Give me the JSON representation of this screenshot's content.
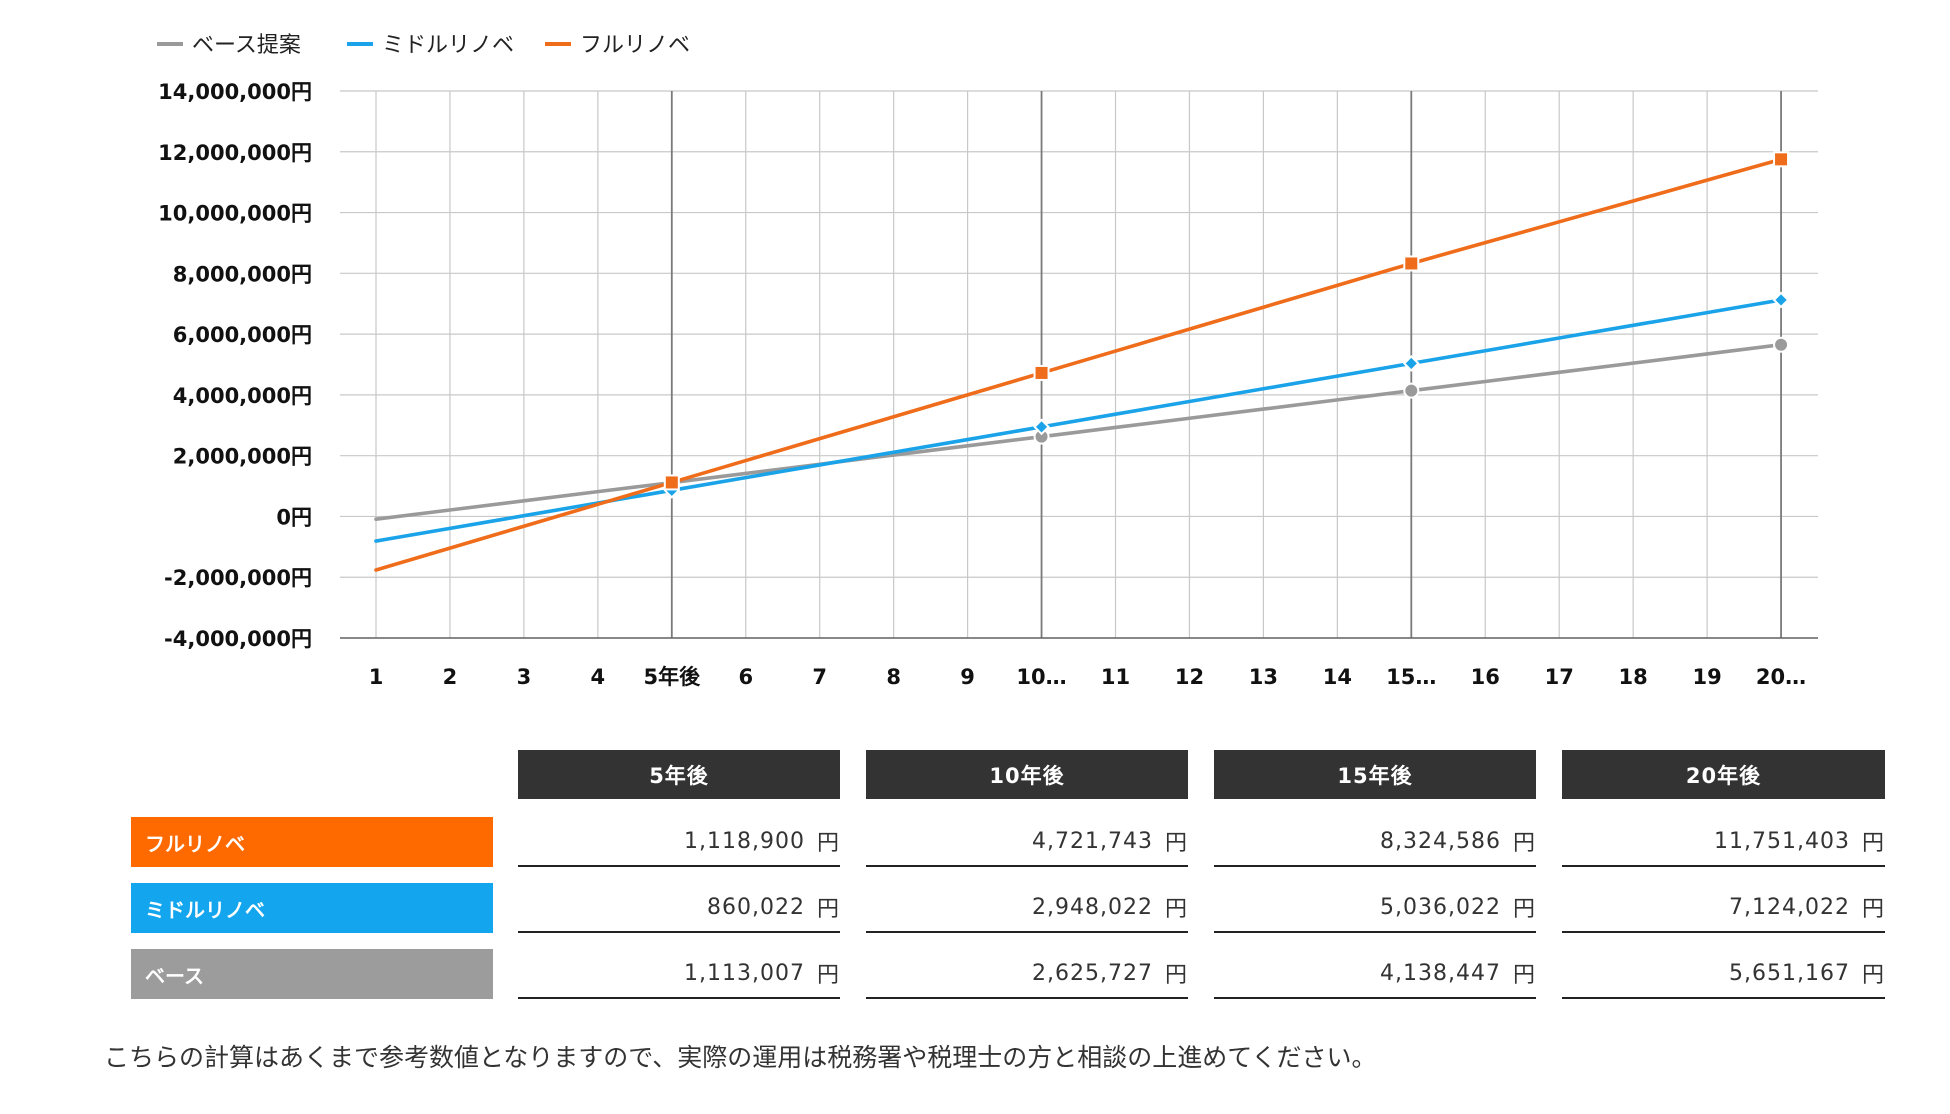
{
  "chart_data": {
    "type": "line",
    "legend": [
      {
        "name": "ベース提案",
        "color": "#9a9a9a"
      },
      {
        "name": "ミドルリノベ",
        "color": "#1aa3e8"
      },
      {
        "name": "フルリノベ",
        "color": "#ef6c1a"
      }
    ],
    "legend_position": "top-left",
    "x_labels": [
      "1",
      "2",
      "3",
      "4",
      "5年後",
      "6",
      "7",
      "8",
      "9",
      "10…",
      "11",
      "12",
      "13",
      "14",
      "15…",
      "16",
      "17",
      "18",
      "19",
      "20…"
    ],
    "y_ticks": [
      "14,000,000円",
      "12,000,000円",
      "10,000,000円",
      "8,000,000円",
      "6,000,000円",
      "4,000,000円",
      "2,000,000円",
      "0円",
      "-2,000,000円",
      "-4,000,000円"
    ],
    "ylim": [
      -4000000,
      14000000
    ],
    "grid": true,
    "highlight_x": [
      5,
      10,
      15,
      20
    ],
    "series": [
      {
        "name": "ベース提案",
        "color": "#9a9a9a",
        "marker": "circle",
        "values": [
          -90273,
          212347,
          514967,
          817587,
          1113007,
          1415627,
          1718247,
          2020867,
          2323487,
          2625727,
          2928207,
          3230687,
          3533167,
          3835647,
          4138447,
          4440927,
          4743407,
          5045887,
          5348367,
          5651167
        ]
      },
      {
        "name": "ミドルリノベ",
        "color": "#1aa3e8",
        "marker": "diamond",
        "values": [
          -810378,
          -392778,
          24822,
          442422,
          860022,
          1277622,
          1695222,
          2112822,
          2530422,
          2948022,
          3365622,
          3783222,
          4200822,
          4618422,
          5036022,
          5453622,
          5871222,
          6288822,
          6706422,
          7124022
        ]
      },
      {
        "name": "フルリノベ",
        "color": "#ef6c1a",
        "marker": "square",
        "values": [
          -1762468,
          -1042125,
          -321781,
          398563,
          1118900,
          1839469,
          2560038,
          3280606,
          4001174,
          4721743,
          5442312,
          6162881,
          6883449,
          7604018,
          8324586,
          9009949,
          9695313,
          10380676,
          11066040,
          11751403
        ]
      }
    ]
  },
  "table": {
    "columns": [
      "5年後",
      "10年後",
      "15年後",
      "20年後"
    ],
    "unit": "円",
    "rows": [
      {
        "label": "フルリノベ",
        "color": "#ff6a00",
        "values": [
          "1,118,900",
          "4,721,743",
          "8,324,586",
          "11,751,403"
        ]
      },
      {
        "label": "ミドルリノベ",
        "color": "#13a6ee",
        "values": [
          "860,022",
          "2,948,022",
          "5,036,022",
          "7,124,022"
        ]
      },
      {
        "label": "ベース",
        "color": "#9c9c9c",
        "values": [
          "1,113,007",
          "2,625,727",
          "4,138,447",
          "5,651,167"
        ]
      }
    ]
  },
  "note": "こちらの計算はあくまで参考数値となりますので、実際の運用は税務署や税理士の方と相談の上進めてください。"
}
